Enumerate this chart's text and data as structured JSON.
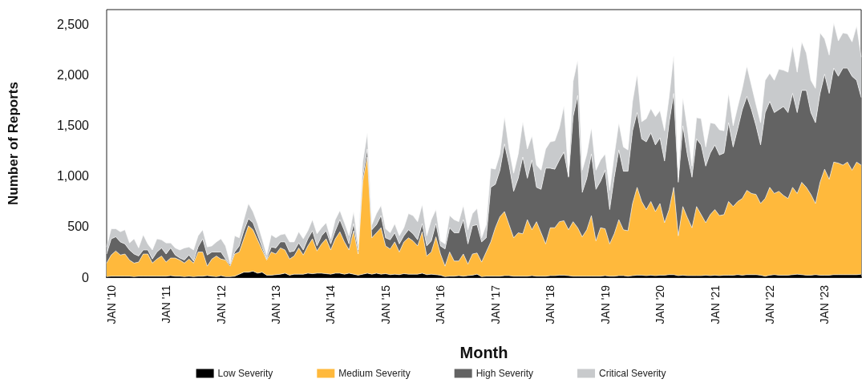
{
  "chart_data": {
    "type": "area",
    "stacked": true,
    "xlabel": "Month",
    "ylabel": "Number of Reports",
    "legend": "bottom",
    "marker": "none",
    "grid": false,
    "ylim": [
      0,
      2650
    ],
    "yticks": [
      0,
      500,
      {
        "value": 1000,
        "label": "1,000"
      },
      {
        "value": 1500,
        "label": "1,500"
      },
      {
        "value": 2000,
        "label": "2,000"
      },
      {
        "value": 2500,
        "label": "2,500"
      }
    ],
    "categories": [
      null,
      "JAN '10",
      null,
      null,
      null,
      null,
      null,
      null,
      null,
      null,
      null,
      null,
      null,
      "JAN '11",
      null,
      null,
      null,
      null,
      null,
      null,
      null,
      null,
      null,
      null,
      null,
      "JAN '12",
      null,
      null,
      null,
      null,
      null,
      null,
      null,
      null,
      null,
      null,
      null,
      "JAN '13",
      null,
      null,
      null,
      null,
      null,
      null,
      null,
      null,
      null,
      null,
      null,
      "JAN '14",
      null,
      null,
      null,
      null,
      null,
      null,
      null,
      null,
      null,
      null,
      null,
      "JAN '15",
      null,
      null,
      null,
      null,
      null,
      null,
      null,
      null,
      null,
      null,
      null,
      "JAN '16",
      null,
      null,
      null,
      null,
      null,
      null,
      null,
      null,
      null,
      null,
      null,
      "JAN '17",
      null,
      null,
      null,
      null,
      null,
      null,
      null,
      null,
      null,
      null,
      null,
      "JAN '18",
      null,
      null,
      null,
      null,
      null,
      null,
      null,
      null,
      null,
      null,
      null,
      "JAN '19",
      null,
      null,
      null,
      null,
      null,
      null,
      null,
      null,
      null,
      null,
      null,
      "JAN '20",
      null,
      null,
      null,
      null,
      null,
      null,
      null,
      null,
      null,
      null,
      null,
      "JAN '21",
      null,
      null,
      null,
      null,
      null,
      null,
      null,
      null,
      null,
      null,
      null,
      "JAN '22",
      null,
      null,
      null,
      null,
      null,
      null,
      null,
      null,
      null,
      null,
      null,
      "JAN '23",
      null,
      null,
      null,
      null,
      null,
      null,
      null,
      null
    ],
    "series": [
      {
        "name": "Low Severity",
        "color": "#000000",
        "values": [
          5,
          10,
          10,
          10,
          10,
          10,
          5,
          10,
          10,
          10,
          10,
          10,
          10,
          10,
          15,
          10,
          10,
          5,
          10,
          5,
          10,
          10,
          15,
          10,
          5,
          15,
          5,
          5,
          10,
          30,
          50,
          50,
          60,
          40,
          50,
          20,
          20,
          25,
          30,
          40,
          20,
          30,
          30,
          30,
          40,
          35,
          40,
          40,
          35,
          30,
          40,
          40,
          30,
          40,
          30,
          20,
          30,
          40,
          30,
          40,
          30,
          35,
          25,
          30,
          25,
          35,
          30,
          30,
          30,
          40,
          25,
          30,
          25,
          20,
          5,
          10,
          10,
          15,
          10,
          15,
          20,
          30,
          5,
          10,
          10,
          10,
          10,
          15,
          15,
          10,
          10,
          10,
          10,
          15,
          10,
          10,
          10,
          15,
          15,
          20,
          20,
          15,
          10,
          10,
          10,
          10,
          10,
          10,
          10,
          15,
          10,
          10,
          15,
          15,
          10,
          15,
          20,
          20,
          15,
          20,
          15,
          20,
          20,
          25,
          25,
          15,
          20,
          15,
          15,
          15,
          15,
          20,
          15,
          20,
          15,
          20,
          20,
          20,
          25,
          20,
          25,
          25,
          25,
          20,
          10,
          20,
          25,
          20,
          20,
          20,
          25,
          30,
          25,
          20,
          20,
          25,
          20,
          20,
          20,
          25,
          25,
          25,
          25,
          25,
          25,
          30
        ]
      },
      {
        "name": "Medium Severity",
        "color": "#ffb93c",
        "values": [
          135,
          210,
          250,
          210,
          220,
          160,
          135,
          140,
          220,
          220,
          130,
          170,
          200,
          140,
          175,
          180,
          160,
          135,
          170,
          135,
          240,
          240,
          95,
          170,
          205,
          165,
          165,
          105,
          220,
          220,
          330,
          460,
          410,
          330,
          220,
          150,
          230,
          205,
          260,
          230,
          160,
          180,
          260,
          190,
          270,
          345,
          220,
          290,
          345,
          240,
          340,
          410,
          320,
          230,
          430,
          210,
          920,
          1150,
          360,
          400,
          460,
          275,
          255,
          320,
          225,
          315,
          360,
          330,
          280,
          410,
          185,
          220,
          375,
          210,
          105,
          240,
          150,
          145,
          220,
          115,
          210,
          210,
          145,
          240,
          340,
          480,
          590,
          635,
          505,
          380,
          430,
          420,
          560,
          455,
          540,
          430,
          320,
          475,
          475,
          530,
          540,
          455,
          540,
          480,
          390,
          460,
          600,
          350,
          480,
          465,
          320,
          420,
          555,
          455,
          450,
          715,
          870,
          730,
          655,
          730,
          635,
          710,
          520,
          645,
          865,
          395,
          680,
          575,
          475,
          685,
          605,
          520,
          605,
          650,
          595,
          600,
          730,
          680,
          725,
          760,
          835,
          805,
          795,
          710,
          770,
          870,
          805,
          830,
          790,
          760,
          865,
          800,
          915,
          870,
          800,
          705,
          920,
          1050,
          950,
          1115,
          1105,
          1085,
          1115,
          1035,
          1115,
          1080
        ]
      },
      {
        "name": "High Severity",
        "color": "#636363",
        "values": [
          90,
          160,
          140,
          130,
          100,
          100,
          90,
          60,
          40,
          40,
          40,
          70,
          80,
          80,
          100,
          30,
          20,
          30,
          40,
          20,
          50,
          130,
          110,
          70,
          40,
          70,
          10,
          15,
          20,
          60,
          80,
          70,
          70,
          50,
          30,
          10,
          50,
          60,
          60,
          80,
          70,
          50,
          50,
          50,
          70,
          80,
          50,
          80,
          80,
          60,
          80,
          120,
          110,
          60,
          70,
          40,
          50,
          80,
          80,
          80,
          120,
          80,
          90,
          90,
          80,
          60,
          80,
          70,
          60,
          80,
          100,
          110,
          130,
          80,
          170,
          240,
          280,
          280,
          340,
          200,
          280,
          280,
          200,
          140,
          540,
          430,
          460,
          670,
          590,
          460,
          540,
          760,
          410,
          690,
          340,
          430,
          750,
          590,
          580,
          610,
          680,
          520,
          1040,
          1310,
          440,
          510,
          610,
          510,
          460,
          580,
          340,
          560,
          690,
          580,
          590,
          720,
          740,
          620,
          670,
          680,
          660,
          650,
          610,
          860,
          930,
          530,
          800,
          620,
          500,
          670,
          690,
          560,
          610,
          640,
          600,
          610,
          780,
          590,
          720,
          880,
          930,
          830,
          680,
          580,
          850,
          850,
          800,
          810,
          880,
          850,
          930,
          800,
          910,
          960,
          810,
          800,
          880,
          940,
          850,
          930,
          860,
          960,
          930,
          930,
          810,
          670
        ]
      },
      {
        "name": "Critical Severity",
        "color": "#c8cacc",
        "values": [
          70,
          100,
          80,
          100,
          140,
          70,
          150,
          80,
          150,
          60,
          90,
          130,
          80,
          110,
          50,
          70,
          80,
          120,
          80,
          110,
          110,
          90,
          80,
          60,
          100,
          130,
          130,
          15,
          160,
          80,
          110,
          150,
          110,
          110,
          80,
          40,
          120,
          100,
          70,
          80,
          100,
          90,
          110,
          110,
          80,
          110,
          120,
          80,
          80,
          50,
          110,
          90,
          80,
          80,
          120,
          60,
          140,
          160,
          50,
          110,
          100,
          90,
          70,
          90,
          80,
          80,
          160,
          180,
          180,
          190,
          100,
          210,
          140,
          50,
          50,
          120,
          130,
          110,
          140,
          140,
          120,
          160,
          40,
          130,
          190,
          150,
          160,
          270,
          160,
          180,
          240,
          350,
          290,
          240,
          220,
          190,
          190,
          260,
          280,
          320,
          460,
          10,
          350,
          350,
          220,
          240,
          260,
          190,
          210,
          160,
          190,
          220,
          270,
          240,
          210,
          290,
          380,
          170,
          230,
          240,
          280,
          270,
          300,
          260,
          380,
          50,
          280,
          260,
          110,
          210,
          260,
          190,
          300,
          210,
          250,
          220,
          290,
          210,
          220,
          210,
          300,
          240,
          210,
          220,
          320,
          280,
          320,
          400,
          360,
          400,
          470,
          400,
          480,
          370,
          320,
          340,
          600,
          350,
          380,
          450,
          350,
          350,
          340,
          340,
          540,
          400
        ]
      }
    ]
  }
}
